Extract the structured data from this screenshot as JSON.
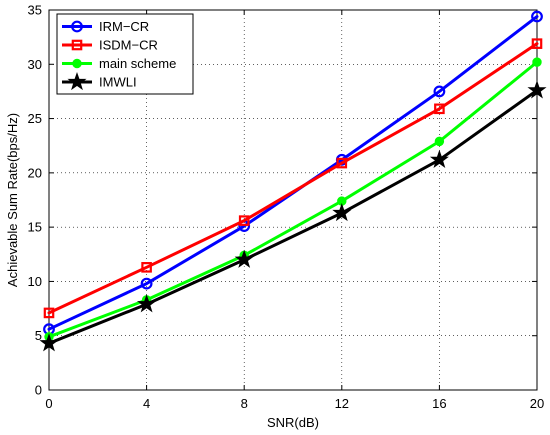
{
  "chart_data": {
    "type": "line",
    "title": "",
    "xlabel": "SNR(dB)",
    "ylabel": "Achievable Sum Rate(bps/Hz)",
    "x": [
      0,
      4,
      8,
      12,
      16,
      20
    ],
    "xticks": [
      0,
      4,
      8,
      12,
      16,
      20
    ],
    "yticks": [
      0,
      5,
      10,
      15,
      20,
      25,
      30,
      35
    ],
    "xlim": [
      0,
      20
    ],
    "ylim": [
      0,
      35
    ],
    "grid": true,
    "legend_position": "top-left",
    "series": [
      {
        "name": "IRM−CR",
        "values": [
          5.6,
          9.8,
          15.1,
          21.2,
          27.5,
          34.4
        ],
        "color": "#0000ff",
        "marker": "circle"
      },
      {
        "name": "ISDM−CR",
        "values": [
          7.1,
          11.3,
          15.6,
          20.9,
          25.9,
          31.9
        ],
        "color": "#ff0000",
        "marker": "square"
      },
      {
        "name": "main scheme",
        "values": [
          4.9,
          8.3,
          12.4,
          17.4,
          22.9,
          30.2
        ],
        "color": "#00ff00",
        "marker": "dot"
      },
      {
        "name": "IMWLI",
        "values": [
          4.3,
          7.9,
          12.0,
          16.3,
          21.2,
          27.6
        ],
        "color": "#000000",
        "marker": "star"
      }
    ]
  }
}
